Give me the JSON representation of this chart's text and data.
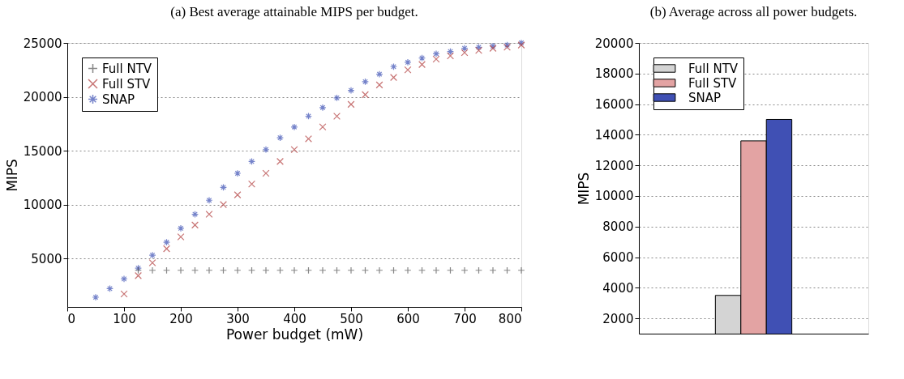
{
  "chart_data": [
    {
      "type": "scatter",
      "title": "(a) Best average attainable MIPS per budget.",
      "xlabel": "Power budget (mW)",
      "ylabel": "MIPS",
      "x": [
        50,
        75,
        100,
        125,
        150,
        175,
        200,
        225,
        250,
        275,
        300,
        325,
        350,
        375,
        400,
        425,
        450,
        475,
        500,
        525,
        550,
        575,
        600,
        625,
        650,
        675,
        700,
        725,
        750,
        775,
        800
      ],
      "xlim": [
        0,
        800
      ],
      "xticks": [
        0,
        100,
        200,
        300,
        400,
        500,
        600,
        700,
        800
      ],
      "ylim": [
        500,
        25000
      ],
      "yticks": [
        5000,
        10000,
        15000,
        20000,
        25000
      ],
      "grid": "y",
      "legend": "top left",
      "series": [
        {
          "name": "Full NTV",
          "color": "#555555",
          "marker": "plus",
          "values": [
            null,
            null,
            null,
            3900,
            3900,
            3900,
            3900,
            3900,
            3900,
            3900,
            3900,
            3900,
            3900,
            3900,
            3900,
            3900,
            3900,
            3900,
            3900,
            3900,
            3900,
            3900,
            3900,
            3900,
            3900,
            3900,
            3900,
            3900,
            3900,
            3900,
            3900
          ]
        },
        {
          "name": "Full STV",
          "color": "#b03a3a",
          "marker": "cross",
          "values": [
            null,
            null,
            1700,
            3400,
            4600,
            5900,
            7000,
            8100,
            9100,
            10000,
            10900,
            11900,
            12900,
            14000,
            15100,
            16100,
            17200,
            18200,
            19300,
            20200,
            21100,
            21800,
            22500,
            23000,
            23500,
            23800,
            24100,
            24300,
            24500,
            24600,
            24800
          ]
        },
        {
          "name": "SNAP",
          "color": "#3c50b4",
          "values": [
            1400,
            2200,
            3100,
            4100,
            5300,
            6500,
            7800,
            9100,
            10400,
            11600,
            12900,
            14000,
            15100,
            16200,
            17200,
            18200,
            19000,
            19900,
            20600,
            21400,
            22100,
            22800,
            23200,
            23600,
            24000,
            24200,
            24500,
            24600,
            24700,
            24800,
            25000
          ]
        }
      ]
    },
    {
      "type": "bar",
      "title": "(b) Average across all power budgets.",
      "ylabel": "MIPS",
      "categories": [
        null
      ],
      "ylim": [
        1000,
        20000
      ],
      "yticks": [
        2000,
        4000,
        6000,
        8000,
        10000,
        12000,
        14000,
        16000,
        18000,
        20000
      ],
      "grid": "y",
      "legend": "top left",
      "series": [
        {
          "name": "Full NTV",
          "color": "#d4d4d4",
          "values": [
            3500
          ]
        },
        {
          "name": "Full STV",
          "color": "#e3a3a3",
          "values": [
            13600
          ]
        },
        {
          "name": "SNAP",
          "color": "#4050b4",
          "values": [
            15000
          ]
        }
      ]
    }
  ]
}
